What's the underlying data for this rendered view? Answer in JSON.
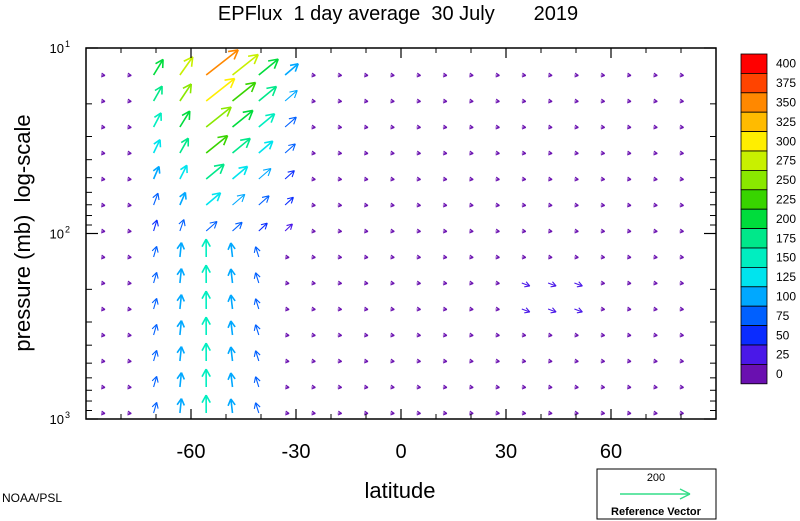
{
  "chart_data": {
    "type": "vector-field",
    "title": "EPFlux  1 day average  30 July       2019",
    "xlabel": "latitude",
    "ylabel": "pressure (mb)  log-scale",
    "xlim": [
      -90,
      90
    ],
    "ylim": [
      1000,
      10
    ],
    "y_scale": "log",
    "x_ticks": [
      -60,
      -30,
      0,
      30,
      60
    ],
    "x_tick_labels": [
      "-60",
      "-30",
      "0",
      "30",
      "60"
    ],
    "y_ticks": [
      10,
      100,
      1000
    ],
    "y_tick_labels": [
      {
        "base": "10",
        "exp": "1"
      },
      {
        "base": "10",
        "exp": "2"
      },
      {
        "base": "10",
        "exp": "3"
      }
    ],
    "colorbar": {
      "levels": [
        400,
        375,
        350,
        325,
        300,
        275,
        250,
        225,
        200,
        175,
        150,
        125,
        100,
        75,
        50,
        25,
        0
      ],
      "colors": [
        "#ff0000",
        "#ff4400",
        "#ff8800",
        "#ffbb00",
        "#ffee00",
        "#c8f000",
        "#8ae800",
        "#38d400",
        "#00dc3c",
        "#00e88a",
        "#00eec0",
        "#00e4ee",
        "#00a8ff",
        "#0060ff",
        "#0a2cff",
        "#4a18e8",
        "#6a10b0"
      ]
    },
    "reference_vector": {
      "value": "200",
      "label": "Reference Vector",
      "color": "#33dd88"
    }
  },
  "credit": "NOAA/PSL"
}
